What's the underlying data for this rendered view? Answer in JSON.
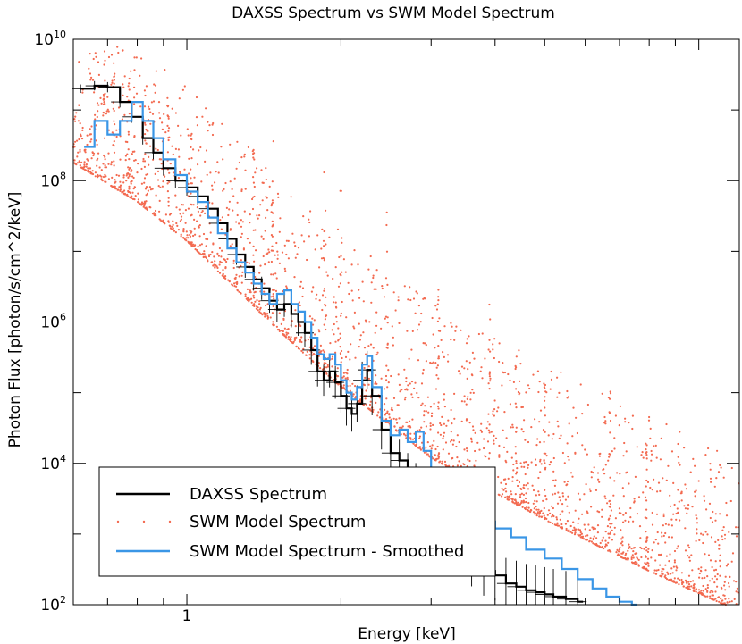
{
  "chart_data": {
    "type": "line",
    "title": "DAXSS Spectrum vs SWM Model Spectrum",
    "xlabel": "Energy [keV]",
    "ylabel": "Photon Flux [photon/s/cm^2/keV]",
    "xscale": "log",
    "yscale": "log",
    "xlim": [
      0.6,
      12
    ],
    "ylim": [
      100,
      10000000000
    ],
    "x_tick_labels": [
      {
        "value": 1,
        "label": "1"
      }
    ],
    "y_tick_labels": [
      {
        "value": 10000000000,
        "base": "10",
        "exp": "10"
      },
      {
        "value": 100000000,
        "base": "10",
        "exp": "8"
      },
      {
        "value": 1000000,
        "base": "10",
        "exp": "6"
      },
      {
        "value": 10000,
        "base": "10",
        "exp": "4"
      },
      {
        "value": 100,
        "base": "10",
        "exp": "2"
      }
    ],
    "legend": {
      "placement": "bottom-left",
      "entries": [
        {
          "label": "DAXSS Spectrum",
          "color": "#000000",
          "style": "line"
        },
        {
          "label": "SWM Model Spectrum",
          "color": "#f36a50",
          "style": "dots"
        },
        {
          "label": "SWM Model Spectrum - Smoothed",
          "color": "#3a96e6",
          "style": "line"
        }
      ]
    },
    "series": [
      {
        "name": "DAXSS Spectrum",
        "color": "#000000",
        "style": "step-with-errorbars",
        "x": [
          0.62,
          0.66,
          0.7,
          0.74,
          0.78,
          0.82,
          0.86,
          0.9,
          0.95,
          1.0,
          1.05,
          1.1,
          1.15,
          1.2,
          1.25,
          1.3,
          1.35,
          1.4,
          1.45,
          1.5,
          1.55,
          1.6,
          1.65,
          1.7,
          1.75,
          1.8,
          1.85,
          1.9,
          1.95,
          2.0,
          2.05,
          2.1,
          2.15,
          2.2,
          2.25,
          2.3,
          2.4,
          2.5,
          2.6,
          2.7,
          2.8,
          2.9,
          3.0,
          3.1,
          3.2,
          3.4,
          3.6,
          3.8,
          4.0,
          4.2,
          4.4,
          4.6,
          4.8,
          5.0,
          5.2,
          5.5,
          5.8
        ],
        "y": [
          2000000000,
          2200000000,
          2100000000,
          1300000000,
          800000000,
          400000000,
          250000000,
          150000000,
          100000000,
          80000000,
          60000000,
          40000000,
          25000000,
          15000000,
          9000000,
          6000000,
          4000000,
          3000000,
          2000000,
          1500000,
          1800000,
          1300000,
          1000000,
          700000,
          400000,
          200000,
          150000,
          200000,
          140000,
          90000,
          60000,
          50000,
          70000,
          150000,
          210000,
          90000,
          30000,
          14000,
          11000,
          7000,
          5000,
          3000,
          2000,
          1200,
          900,
          600,
          400,
          300,
          260,
          200,
          180,
          160,
          150,
          140,
          130,
          120,
          110
        ]
      },
      {
        "name": "SWM Model Spectrum - Smoothed",
        "color": "#3a96e6",
        "style": "step",
        "x": [
          0.63,
          0.66,
          0.7,
          0.74,
          0.78,
          0.82,
          0.86,
          0.9,
          0.95,
          1.0,
          1.05,
          1.1,
          1.15,
          1.2,
          1.25,
          1.3,
          1.35,
          1.4,
          1.45,
          1.5,
          1.55,
          1.6,
          1.65,
          1.7,
          1.75,
          1.8,
          1.85,
          1.9,
          1.95,
          2.0,
          2.05,
          2.1,
          2.15,
          2.2,
          2.25,
          2.3,
          2.4,
          2.5,
          2.6,
          2.7,
          2.8,
          2.9,
          3.0,
          3.2,
          3.4,
          3.6,
          3.8,
          4.0,
          4.3,
          4.6,
          5.0,
          5.4,
          5.8,
          6.2,
          6.6,
          7.0,
          7.4
        ],
        "y": [
          300000000,
          700000000,
          450000000,
          700000000,
          1300000000,
          700000000,
          400000000,
          200000000,
          120000000,
          70000000,
          50000000,
          30000000,
          18000000,
          11000000,
          7000000,
          5000000,
          3500000,
          2500000,
          1800000,
          2500000,
          2800000,
          1800000,
          1400000,
          1000000,
          600000,
          350000,
          300000,
          350000,
          250000,
          150000,
          100000,
          80000,
          120000,
          250000,
          330000,
          120000,
          40000,
          25000,
          30000,
          20000,
          28000,
          15000,
          8000,
          5000,
          3000,
          2200,
          1500,
          1200,
          900,
          600,
          450,
          320,
          230,
          170,
          130,
          110,
          100
        ]
      }
    ],
    "model_scatter": {
      "name": "SWM Model Spectrum",
      "color": "#f36a50",
      "continuum": {
        "x": [
          0.6,
          0.8,
          1.0,
          1.5,
          2.0,
          3.0,
          5.0,
          8.0,
          12.0
        ],
        "y": [
          180000000,
          50000000,
          14000000,
          800000,
          120000,
          12000,
          1600,
          300,
          80
        ]
      },
      "lines": [
        {
          "x": 0.69,
          "peak": 8000000000
        },
        {
          "x": 0.72,
          "peak": 6000000000
        },
        {
          "x": 0.77,
          "peak": 3000000000
        },
        {
          "x": 0.83,
          "peak": 2000000000
        },
        {
          "x": 0.92,
          "peak": 1500000000
        },
        {
          "x": 1.02,
          "peak": 500000000
        },
        {
          "x": 1.35,
          "peak": 300000000
        },
        {
          "x": 1.47,
          "peak": 1500000000
        },
        {
          "x": 1.86,
          "peak": 150000000
        },
        {
          "x": 2.0,
          "peak": 80000000
        },
        {
          "x": 2.46,
          "peak": 50000000
        },
        {
          "x": 3.1,
          "peak": 3000000
        },
        {
          "x": 3.9,
          "peak": 2500000
        },
        {
          "x": 4.4,
          "peak": 600000
        },
        {
          "x": 5.0,
          "peak": 200000
        },
        {
          "x": 6.7,
          "peak": 150000
        },
        {
          "x": 7.9,
          "peak": 20000
        }
      ]
    }
  }
}
